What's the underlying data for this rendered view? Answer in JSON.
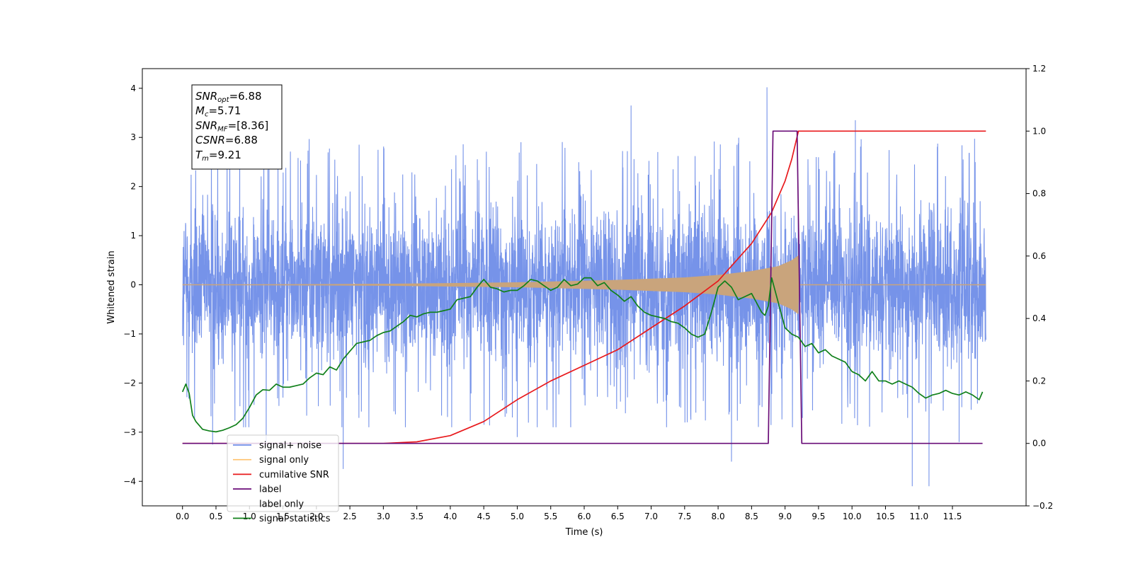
{
  "chart_data": {
    "type": "line",
    "xlabel": "Time (s)",
    "ylabel_left": "Whitened strain",
    "ylabel_right": "",
    "xlim": [
      -0.6,
      12.6
    ],
    "ylim_left": [
      -4.5,
      4.4
    ],
    "ylim_right": [
      -0.2,
      1.2
    ],
    "x_ticks": [
      0.0,
      0.5,
      1.0,
      1.5,
      2.0,
      2.5,
      3.0,
      3.5,
      4.0,
      4.5,
      5.0,
      5.5,
      6.0,
      6.5,
      7.0,
      7.5,
      8.0,
      8.5,
      9.0,
      9.5,
      10.0,
      10.5,
      11.0,
      11.5
    ],
    "x_tick_labels": [
      "0.0",
      "0.5",
      "1.0",
      "1.5",
      "2.0",
      "2.5",
      "3.0",
      "3.5",
      "4.0",
      "4.5",
      "5.0",
      "5.5",
      "6.0",
      "6.5",
      "7.0",
      "7.5",
      "8.0",
      "8.5",
      "9.0",
      "9.5",
      "10.0",
      "10.5",
      "11.0",
      "11.5"
    ],
    "y_left_ticks": [
      -4,
      -3,
      -2,
      -1,
      0,
      1,
      2,
      3,
      4
    ],
    "y_left_tick_labels": [
      "−4",
      "−3",
      "−2",
      "−1",
      "0",
      "1",
      "2",
      "3",
      "4"
    ],
    "y_right_ticks": [
      -0.2,
      0.0,
      0.2,
      0.4,
      0.6,
      0.8,
      1.0,
      1.2
    ],
    "y_right_tick_labels": [
      "−0.2",
      "0.0",
      "0.2",
      "0.4",
      "0.6",
      "0.8",
      "1.0",
      "1.2"
    ],
    "grid": false,
    "legend_position": "lower-left",
    "colors": {
      "noise": "#6f8de8",
      "signal": "#ffc16b",
      "signal_fill": "#c9a47c",
      "snr": "#e8191c",
      "label": "#6a0d78",
      "stats": "#10801a"
    },
    "series": [
      {
        "name": "signal+ noise",
        "axis": "left",
        "x_range": [
          0.0,
          12.0
        ],
        "typical_amplitude": 1.3,
        "peak_values": [
          {
            "x": 0.45,
            "y": -3.25
          },
          {
            "x": 1.25,
            "y": -3.2
          },
          {
            "x": 2.4,
            "y": -3.75
          },
          {
            "x": 5.0,
            "y": -3.1
          },
          {
            "x": 6.7,
            "y": 3.65
          },
          {
            "x": 8.2,
            "y": -3.6
          },
          {
            "x": 8.73,
            "y": 4.02
          },
          {
            "x": 10.05,
            "y": 3.35
          },
          {
            "x": 10.9,
            "y": -4.1
          },
          {
            "x": 11.15,
            "y": -4.1
          },
          {
            "x": 11.6,
            "y": -3.2
          }
        ]
      },
      {
        "name": "signal only",
        "axis": "left",
        "envelope_x": [
          0.0,
          3.0,
          5.0,
          6.5,
          7.5,
          8.0,
          8.5,
          8.9,
          9.1,
          9.2,
          9.21,
          12.0
        ],
        "envelope_y": [
          0.0,
          0.02,
          0.05,
          0.1,
          0.15,
          0.2,
          0.28,
          0.38,
          0.5,
          0.6,
          0.0,
          0.0
        ]
      },
      {
        "name": "cumilative SNR",
        "axis": "right",
        "x": [
          0.0,
          2.5,
          3.0,
          3.5,
          4.0,
          4.5,
          5.0,
          5.5,
          6.0,
          6.5,
          7.0,
          7.5,
          8.0,
          8.5,
          8.8,
          9.0,
          9.1,
          9.2,
          12.0
        ],
        "y": [
          0.0,
          0.0,
          0.0,
          0.005,
          0.025,
          0.07,
          0.14,
          0.2,
          0.25,
          0.3,
          0.37,
          0.44,
          0.52,
          0.64,
          0.74,
          0.84,
          0.91,
          1.0,
          1.0
        ]
      },
      {
        "name": "label",
        "axis": "right",
        "x": [
          0.0,
          8.75,
          8.82,
          9.18,
          9.25,
          11.95
        ],
        "y": [
          0.0,
          0.0,
          1.0,
          1.0,
          0.0,
          0.0
        ]
      },
      {
        "name": "label only",
        "axis": "right",
        "x": [],
        "y": []
      },
      {
        "name": "signal statistics",
        "axis": "right",
        "x": [
          0.0,
          0.05,
          0.1,
          0.15,
          0.2,
          0.3,
          0.4,
          0.5,
          0.6,
          0.7,
          0.8,
          0.9,
          1.0,
          1.1,
          1.2,
          1.3,
          1.4,
          1.5,
          1.6,
          1.7,
          1.8,
          1.9,
          2.0,
          2.1,
          2.2,
          2.3,
          2.4,
          2.5,
          2.6,
          2.7,
          2.8,
          2.9,
          3.0,
          3.1,
          3.2,
          3.3,
          3.4,
          3.5,
          3.6,
          3.7,
          3.8,
          3.9,
          4.0,
          4.1,
          4.2,
          4.3,
          4.4,
          4.5,
          4.6,
          4.7,
          4.8,
          4.9,
          5.0,
          5.1,
          5.2,
          5.3,
          5.4,
          5.5,
          5.6,
          5.7,
          5.8,
          5.9,
          6.0,
          6.1,
          6.2,
          6.3,
          6.4,
          6.5,
          6.6,
          6.7,
          6.8,
          6.9,
          7.0,
          7.1,
          7.2,
          7.3,
          7.4,
          7.5,
          7.6,
          7.7,
          7.8,
          7.9,
          8.0,
          8.1,
          8.2,
          8.3,
          8.4,
          8.5,
          8.6,
          8.65,
          8.7,
          8.75,
          8.8,
          8.85,
          8.9,
          9.0,
          9.1,
          9.2,
          9.3,
          9.4,
          9.5,
          9.6,
          9.7,
          9.8,
          9.9,
          10.0,
          10.1,
          10.2,
          10.3,
          10.4,
          10.5,
          10.6,
          10.7,
          10.8,
          10.9,
          11.0,
          11.1,
          11.2,
          11.3,
          11.4,
          11.5,
          11.6,
          11.7,
          11.8,
          11.9,
          11.95
        ],
        "y": [
          0.165,
          0.19,
          0.16,
          0.09,
          0.07,
          0.045,
          0.04,
          0.037,
          0.042,
          0.05,
          0.06,
          0.08,
          0.115,
          0.155,
          0.172,
          0.17,
          0.19,
          0.18,
          0.18,
          0.185,
          0.19,
          0.21,
          0.225,
          0.22,
          0.245,
          0.235,
          0.27,
          0.295,
          0.32,
          0.325,
          0.33,
          0.345,
          0.355,
          0.36,
          0.375,
          0.39,
          0.41,
          0.405,
          0.415,
          0.42,
          0.42,
          0.425,
          0.43,
          0.46,
          0.465,
          0.47,
          0.5,
          0.525,
          0.5,
          0.495,
          0.485,
          0.49,
          0.49,
          0.505,
          0.525,
          0.52,
          0.505,
          0.49,
          0.5,
          0.525,
          0.505,
          0.51,
          0.53,
          0.53,
          0.505,
          0.515,
          0.49,
          0.475,
          0.455,
          0.47,
          0.44,
          0.42,
          0.41,
          0.405,
          0.4,
          0.39,
          0.385,
          0.37,
          0.35,
          0.34,
          0.35,
          0.42,
          0.5,
          0.52,
          0.5,
          0.46,
          0.47,
          0.48,
          0.44,
          0.42,
          0.41,
          0.44,
          0.53,
          0.49,
          0.45,
          0.37,
          0.35,
          0.34,
          0.31,
          0.32,
          0.29,
          0.3,
          0.28,
          0.27,
          0.26,
          0.23,
          0.22,
          0.2,
          0.23,
          0.2,
          0.2,
          0.19,
          0.2,
          0.19,
          0.18,
          0.16,
          0.145,
          0.155,
          0.16,
          0.17,
          0.16,
          0.155,
          0.165,
          0.155,
          0.14,
          0.165
        ]
      }
    ],
    "annotation": {
      "lines": [
        {
          "var": "SNR",
          "sub": "opt",
          "value": "=6.88"
        },
        {
          "var": "M",
          "sub": "c",
          "value": "=5.71"
        },
        {
          "var": "SNR",
          "sub": "MF",
          "value": "=[8.36]"
        },
        {
          "var": "CSNR",
          "sub": "",
          "value": "=6.88"
        },
        {
          "var": "T",
          "sub": "m",
          "value": "=9.21"
        }
      ]
    },
    "legend": [
      {
        "label": "signal+ noise",
        "color": "#6f8de8"
      },
      {
        "label": "signal only",
        "color": "#ffc16b"
      },
      {
        "label": "cumilative SNR",
        "color": "#e8191c"
      },
      {
        "label": "label",
        "color": "#6a0d78"
      },
      {
        "label": "label only",
        "color": ""
      },
      {
        "label": "signal statistics",
        "color": "#10801a"
      }
    ]
  }
}
